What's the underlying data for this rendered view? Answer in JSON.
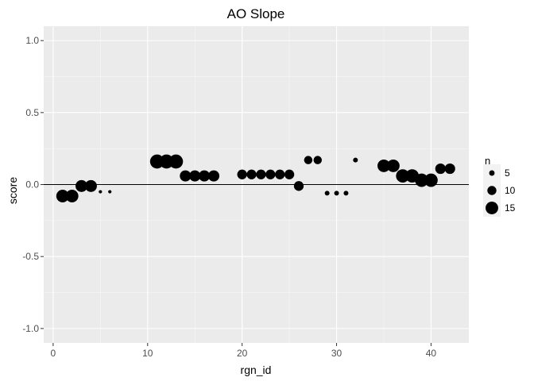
{
  "chart_data": {
    "type": "scatter",
    "title": "AO Slope",
    "xlabel": "rgn_id",
    "ylabel": "score",
    "xlim": [
      -1,
      44
    ],
    "ylim": [
      -1.1,
      1.1
    ],
    "x_ticks": [
      0,
      10,
      20,
      30,
      40
    ],
    "y_ticks": [
      -1.0,
      -0.5,
      0.0,
      0.5,
      1.0
    ],
    "x_tick_labels": [
      "0",
      "10",
      "20",
      "30",
      "40"
    ],
    "y_tick_labels": [
      "-1.0",
      "-0.5",
      "0.0",
      "0.5",
      "1.0"
    ],
    "grid": true,
    "reference_line": {
      "y": 0.0,
      "color": "#000000"
    },
    "size_legend": {
      "title": "n",
      "position": "right",
      "entries": [
        {
          "label": "5",
          "n": 5
        },
        {
          "label": "10",
          "n": 10
        },
        {
          "label": "15",
          "n": 15
        }
      ]
    },
    "points": [
      {
        "x": 1,
        "y": -0.08,
        "n": 15
      },
      {
        "x": 2,
        "y": -0.08,
        "n": 15
      },
      {
        "x": 3,
        "y": -0.01,
        "n": 14
      },
      {
        "x": 4,
        "y": -0.01,
        "n": 14
      },
      {
        "x": 5,
        "y": -0.05,
        "n": 2
      },
      {
        "x": 6,
        "y": -0.05,
        "n": 2
      },
      {
        "x": 11,
        "y": 0.16,
        "n": 17
      },
      {
        "x": 12,
        "y": 0.16,
        "n": 17
      },
      {
        "x": 13,
        "y": 0.16,
        "n": 17
      },
      {
        "x": 14,
        "y": 0.06,
        "n": 13
      },
      {
        "x": 15,
        "y": 0.06,
        "n": 13
      },
      {
        "x": 16,
        "y": 0.06,
        "n": 13
      },
      {
        "x": 17,
        "y": 0.06,
        "n": 13
      },
      {
        "x": 20,
        "y": 0.07,
        "n": 11
      },
      {
        "x": 21,
        "y": 0.07,
        "n": 11
      },
      {
        "x": 22,
        "y": 0.07,
        "n": 11
      },
      {
        "x": 23,
        "y": 0.07,
        "n": 11
      },
      {
        "x": 24,
        "y": 0.07,
        "n": 11
      },
      {
        "x": 25,
        "y": 0.07,
        "n": 11
      },
      {
        "x": 26,
        "y": -0.01,
        "n": 11
      },
      {
        "x": 27,
        "y": 0.17,
        "n": 9
      },
      {
        "x": 28,
        "y": 0.17,
        "n": 9
      },
      {
        "x": 29,
        "y": -0.06,
        "n": 4
      },
      {
        "x": 30,
        "y": -0.06,
        "n": 4
      },
      {
        "x": 31,
        "y": -0.06,
        "n": 4
      },
      {
        "x": 32,
        "y": 0.17,
        "n": 4
      },
      {
        "x": 35,
        "y": 0.13,
        "n": 15
      },
      {
        "x": 36,
        "y": 0.13,
        "n": 15
      },
      {
        "x": 37,
        "y": 0.06,
        "n": 16
      },
      {
        "x": 38,
        "y": 0.06,
        "n": 16
      },
      {
        "x": 39,
        "y": 0.03,
        "n": 16
      },
      {
        "x": 40,
        "y": 0.03,
        "n": 16
      },
      {
        "x": 41,
        "y": 0.11,
        "n": 12
      },
      {
        "x": 42,
        "y": 0.11,
        "n": 12
      }
    ]
  }
}
